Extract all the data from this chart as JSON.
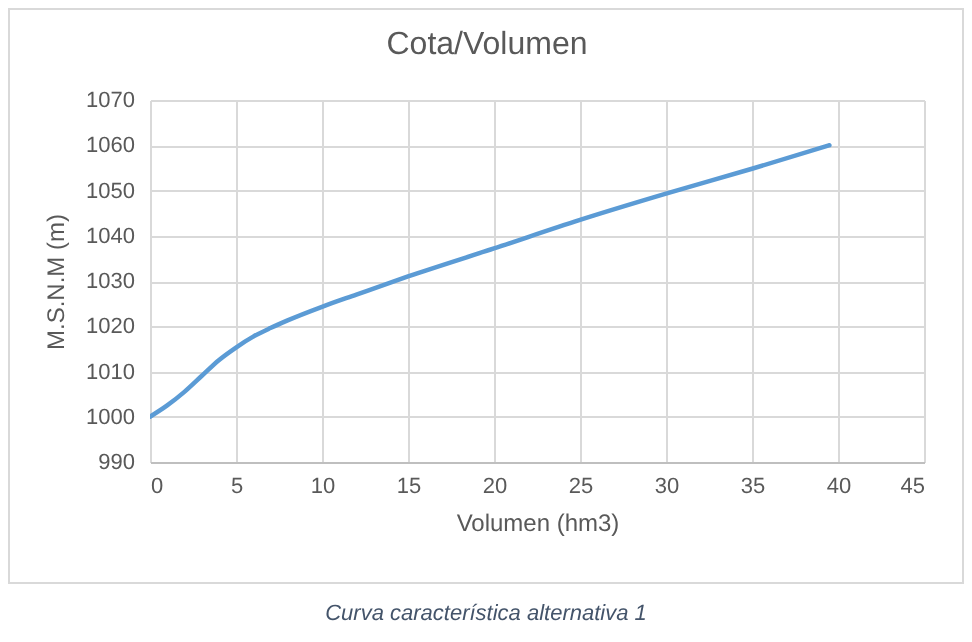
{
  "chart_data": {
    "type": "line",
    "title": "Cota/Volumen",
    "xlabel": "Volumen (hm3)",
    "ylabel": "M.S.N.M (m)",
    "x": [
      0,
      1,
      2,
      3,
      4,
      5,
      6,
      7,
      8,
      10,
      12,
      15,
      20,
      25,
      30,
      35,
      39.5
    ],
    "series": [
      {
        "color": "#5b9bd5",
        "values": [
          1000,
          1002.5,
          1005.5,
          1009,
          1012.5,
          1015.3,
          1017.7,
          1019.6,
          1021.3,
          1024.3,
          1027,
          1031,
          1037.2,
          1043.5,
          1049.3,
          1054.8,
          1060
        ]
      }
    ],
    "xlim": [
      0,
      45
    ],
    "xticks": [
      0,
      5,
      10,
      15,
      20,
      25,
      30,
      35,
      40,
      45
    ],
    "ylim": [
      990,
      1070
    ],
    "yticks": [
      990,
      1000,
      1010,
      1020,
      1030,
      1040,
      1050,
      1060,
      1070
    ],
    "grid": true,
    "marker": "none",
    "line_style": "solid",
    "annotations": [
      "Curva característica alternativa 1"
    ]
  }
}
